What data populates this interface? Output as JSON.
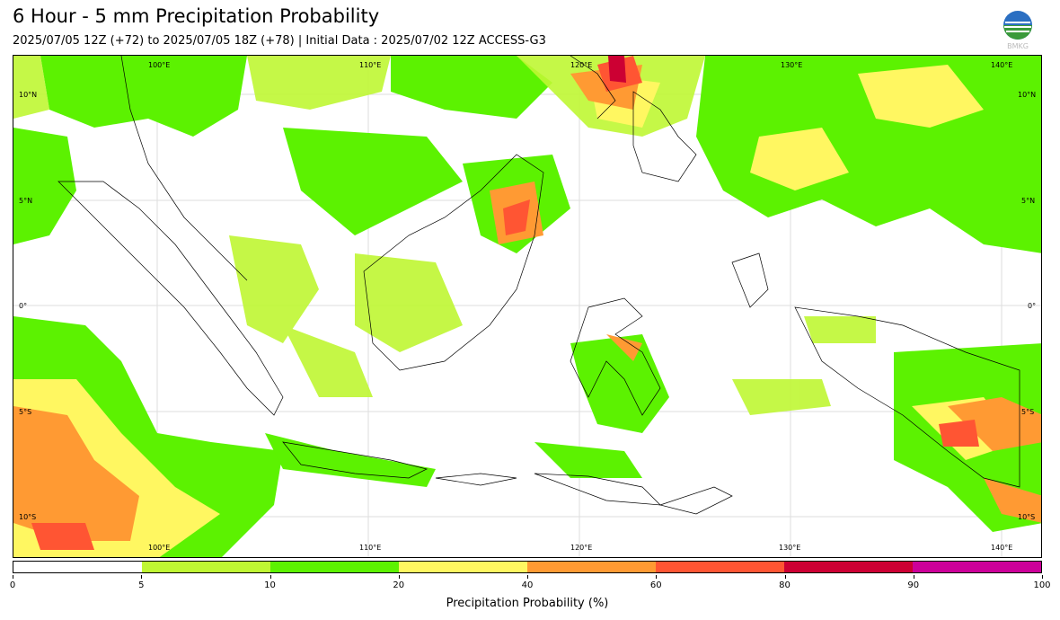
{
  "header": {
    "title": "6 Hour - 5 mm Precipitation Probability",
    "subtitle": "2025/07/05 12Z (+72) to 2025/07/05 18Z (+78) | Initial Data : 2025/07/02 12Z ACCESS-G3",
    "logo_text": "BMKG"
  },
  "map": {
    "lon_labels": [
      "100°E",
      "110°E",
      "120°E",
      "130°E",
      "140°E"
    ],
    "lat_labels": [
      "10°N",
      "5°N",
      "0°",
      "5°S",
      "10°S"
    ]
  },
  "colorbar": {
    "ticks": [
      "0",
      "5",
      "10",
      "20",
      "40",
      "60",
      "80",
      "90",
      "100"
    ],
    "colors": [
      "#ffffff",
      "#bff733",
      "#5cf201",
      "#fff761",
      "#ff9a33",
      "#ff5533",
      "#cc0033",
      "#cc0099"
    ],
    "label": "Precipitation Probability (%)"
  }
}
